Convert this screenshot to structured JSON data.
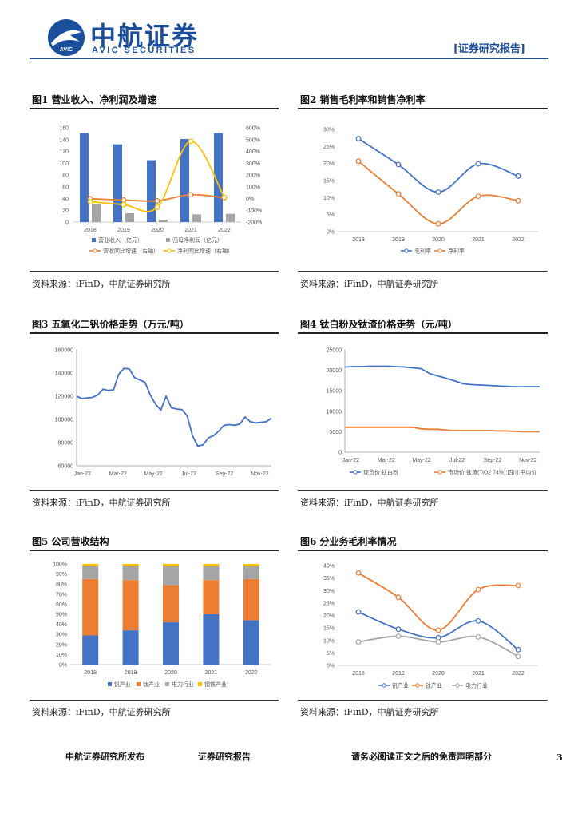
{
  "header": {
    "brand_cn": "中航证券",
    "brand_en": "AVIC SECURITIES",
    "logo_text": "AVIC",
    "report_type": "[证券研究报告]",
    "logo_color": "#1b4f9c"
  },
  "figures": [
    {
      "title": "图1 营业收入、净利润及增速",
      "source": "资料来源：iFinD，中航证券研究所"
    },
    {
      "title": "图2 销售毛利率和销售净利率",
      "source": "资料来源：iFinD，中航证券研究所"
    },
    {
      "title": "图3 五氧化二钒价格走势（万元/吨）",
      "source": "资料来源：iFinD，中航证券研究所"
    },
    {
      "title": "图4 钛白粉及钛渣价格走势（元/吨）",
      "source": "资料来源：iFinD，中航证券研究所"
    },
    {
      "title": "图5 公司营收结构",
      "source": "资料来源：iFinD，中航证券研究所"
    },
    {
      "title": "图6 分业务毛利率情况",
      "source": "资料来源：iFinD，中航证券研究所"
    }
  ],
  "chart_data": [
    {
      "type": "bar",
      "categories": [
        "2018",
        "2019",
        "2020",
        "2021",
        "2022"
      ],
      "series": [
        {
          "name": "营业收入（亿元）",
          "values": [
            151,
            132,
            105,
            141,
            151
          ],
          "color": "#4472c4",
          "axis": "left"
        },
        {
          "name": "归母净利润（亿元）",
          "values": [
            31,
            15,
            4,
            13,
            14
          ],
          "color": "#a5a5a5",
          "axis": "left"
        },
        {
          "name": "营收同比增速（右轴）",
          "values": [
            -2,
            -13,
            -20,
            32,
            7
          ],
          "color": "#ed7d31",
          "axis": "right",
          "kind": "line"
        },
        {
          "name": "净利同比增速（右轴）",
          "values": [
            -27,
            -52,
            -75,
            486,
            10
          ],
          "color": "#ffc000",
          "axis": "right",
          "kind": "line"
        }
      ],
      "yticks": [
        "0",
        "20",
        "40",
        "60",
        "80",
        "100",
        "120",
        "140",
        "160"
      ],
      "y2ticks": [
        "-200%",
        "-100%",
        "0%",
        "100%",
        "200%",
        "300%",
        "400%",
        "500%",
        "600%"
      ],
      "ylim": [
        0,
        160
      ],
      "y2lim": [
        -200,
        600
      ],
      "legend": [
        "营业收入（亿元）",
        "归母净利润（亿元）",
        "营收同比增速（右轴）",
        "净利同比增速（右轴）"
      ]
    },
    {
      "type": "line",
      "categories": [
        "2018",
        "2019",
        "2020",
        "2021",
        "2022"
      ],
      "series": [
        {
          "name": "毛利率",
          "values": [
            27.3,
            19.7,
            11.6,
            19.9,
            16.3
          ],
          "color": "#4472c4"
        },
        {
          "name": "净利率",
          "values": [
            20.7,
            11.1,
            2.3,
            10.4,
            9.1
          ],
          "color": "#ed7d31"
        }
      ],
      "yticks": [
        "0%",
        "5%",
        "10%",
        "15%",
        "20%",
        "25%",
        "30%"
      ],
      "ylim": [
        0,
        30
      ]
    },
    {
      "type": "line",
      "x_labels": [
        "Jan-22",
        "Mar-22",
        "May-22",
        "Jul-22",
        "Sep-22",
        "Nov-22"
      ],
      "yticks": [
        "60000",
        "80000",
        "100000",
        "120000",
        "140000",
        "160000"
      ],
      "ylim": [
        60000,
        160000
      ],
      "series": [
        {
          "name": "五氧化二钒",
          "color": "#4472c4",
          "values": [
            120000,
            118000,
            118500,
            119000,
            121000,
            126000,
            125000,
            125500,
            139000,
            144000,
            143500,
            136000,
            134000,
            132000,
            121000,
            113000,
            108000,
            120000,
            110000,
            109000,
            108500,
            103000,
            86000,
            77000,
            78000,
            84000,
            86000,
            90000,
            95000,
            95500,
            95000,
            96000,
            102000,
            98000,
            97000,
            97500,
            98000,
            101000
          ]
        }
      ]
    },
    {
      "type": "line",
      "x_labels": [
        "Jan-22",
        "Mar-22",
        "May-22",
        "Jul-22",
        "Sep-22",
        "Nov-22"
      ],
      "yticks": [
        "0",
        "5000",
        "10000",
        "15000",
        "20000",
        "25000"
      ],
      "ylim": [
        0,
        25000
      ],
      "series": [
        {
          "name": "现货价:钛白粉",
          "color": "#4472c4",
          "values": [
            20800,
            20900,
            20900,
            21000,
            21000,
            21000,
            20900,
            20800,
            20600,
            20400,
            19200,
            18600,
            18000,
            17400,
            16700,
            16500,
            16400,
            16300,
            16200,
            16100,
            16000,
            16000,
            16000,
            16000
          ]
        },
        {
          "name": "市场价:钛渣(TiO2 74%):四川:平均价",
          "color": "#ed7d31",
          "values": [
            6100,
            6100,
            6100,
            6100,
            6100,
            6100,
            6100,
            6100,
            6100,
            5700,
            5600,
            5600,
            5400,
            5300,
            5300,
            5300,
            5300,
            5300,
            5200,
            5200,
            5100,
            5000,
            5000,
            5000
          ]
        }
      ],
      "legend": [
        "现货价:钛白粉",
        "市场价:钛渣(TiO2 74%):四川:平均价"
      ]
    },
    {
      "type": "bar",
      "stacked": true,
      "categories": [
        "2018",
        "2019",
        "2020",
        "2021",
        "2022"
      ],
      "yticks": [
        "0%",
        "10%",
        "20%",
        "30%",
        "40%",
        "50%",
        "60%",
        "70%",
        "80%",
        "90%",
        "100%"
      ],
      "ylim": [
        0,
        100
      ],
      "series": [
        {
          "name": "钒产业",
          "values": [
            29,
            34,
            42,
            50,
            44
          ],
          "color": "#4472c4"
        },
        {
          "name": "钛产业",
          "values": [
            56,
            50,
            37,
            34,
            41
          ],
          "color": "#ed7d31"
        },
        {
          "name": "电力行业",
          "values": [
            13,
            14,
            19,
            14,
            13
          ],
          "color": "#a5a5a5"
        },
        {
          "name": "钢铁产业",
          "values": [
            2,
            2,
            2,
            2,
            2
          ],
          "color": "#ffc000"
        }
      ]
    },
    {
      "type": "line",
      "categories": [
        "2018",
        "2019",
        "2020",
        "2021",
        "2022"
      ],
      "yticks": [
        "0%",
        "5%",
        "10%",
        "15%",
        "20%",
        "25%",
        "30%",
        "35%",
        "40%"
      ],
      "ylim": [
        0,
        40
      ],
      "series": [
        {
          "name": "钒产业",
          "values": [
            21.4,
            14.5,
            11.1,
            17.8,
            6.3
          ],
          "color": "#4472c4"
        },
        {
          "name": "钛产业",
          "values": [
            37.0,
            27.3,
            14.1,
            30.4,
            32.0
          ],
          "color": "#ed7d31"
        },
        {
          "name": "电力行业",
          "values": [
            9.4,
            11.7,
            9.4,
            11.4,
            3.6
          ],
          "color": "#a5a5a5"
        }
      ]
    }
  ],
  "footer": {
    "left": "中航证券研究所发布",
    "center": "证券研究报告",
    "right": "请务必阅读正文之后的免责声明部分",
    "page": "3"
  }
}
